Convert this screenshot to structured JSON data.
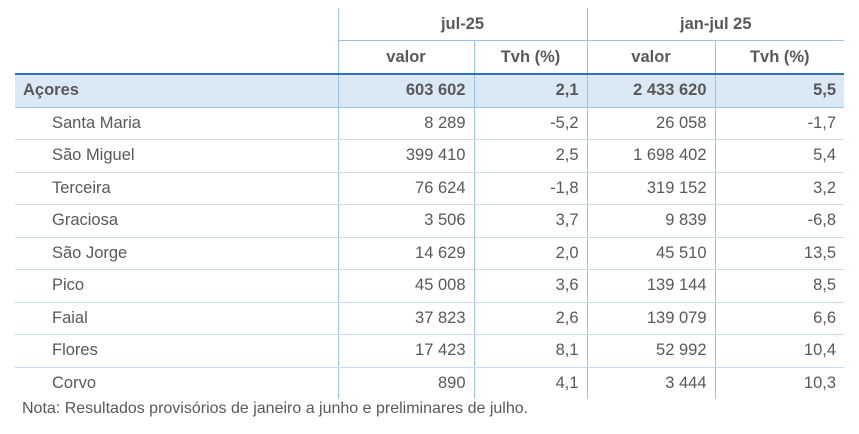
{
  "table": {
    "groups": [
      {
        "label": "jul-25"
      },
      {
        "label": "jan-jul 25"
      }
    ],
    "subheaders": [
      "valor",
      "Tvh (%)",
      "valor",
      "Tvh (%)"
    ],
    "total": {
      "name": "Açores",
      "values": [
        "603 602",
        "2,1",
        "2 433 620",
        "5,5"
      ]
    },
    "rows": [
      {
        "name": "Santa Maria",
        "values": [
          "8 289",
          "-5,2",
          "26 058",
          "-1,7"
        ]
      },
      {
        "name": "São Miguel",
        "values": [
          "399 410",
          "2,5",
          "1 698 402",
          "5,4"
        ]
      },
      {
        "name": "Terceira",
        "values": [
          "76 624",
          "-1,8",
          "319 152",
          "3,2"
        ]
      },
      {
        "name": "Graciosa",
        "values": [
          "3 506",
          "3,7",
          "9 839",
          "-6,8"
        ]
      },
      {
        "name": "São Jorge",
        "values": [
          "14 629",
          "2,0",
          "45 510",
          "13,5"
        ]
      },
      {
        "name": "Pico",
        "values": [
          "45 008",
          "3,6",
          "139 144",
          "8,5"
        ]
      },
      {
        "name": "Faial",
        "values": [
          "37 823",
          "2,6",
          "139 079",
          "6,6"
        ]
      },
      {
        "name": "Flores",
        "values": [
          "17 423",
          "8,1",
          "52 992",
          "10,4"
        ]
      },
      {
        "name": "Corvo",
        "values": [
          "890",
          "4,1",
          "3 444",
          "10,3"
        ]
      }
    ]
  },
  "note": "Nota: Resultados provisórios de janeiro a junho e preliminares de julho."
}
